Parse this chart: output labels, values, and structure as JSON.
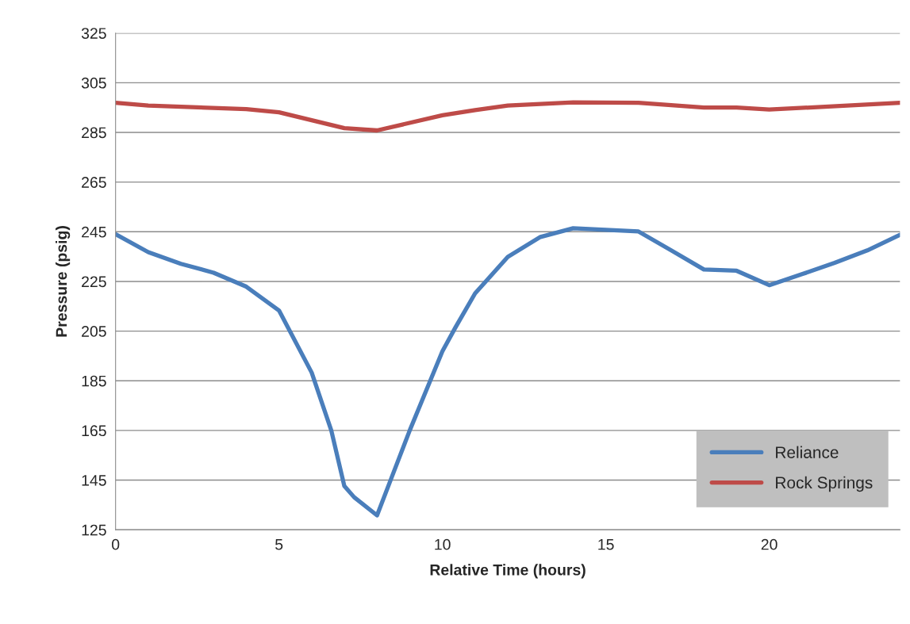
{
  "chart_data": {
    "type": "line",
    "xlabel": "Relative Time (hours)",
    "ylabel": "Pressure (psig)",
    "xlim": [
      0,
      24
    ],
    "xticks": [
      0,
      5,
      10,
      15,
      20
    ],
    "ylim": [
      125,
      325
    ],
    "yticks": [
      125,
      145,
      165,
      185,
      205,
      225,
      245,
      265,
      285,
      305,
      325
    ],
    "grid": "y",
    "legend": "bottom right",
    "marker": "none",
    "line_style": "solid",
    "series": [
      {
        "name": "Reliance",
        "color": "#4a7ebb",
        "x": [
          0,
          1,
          2,
          3,
          4,
          5,
          6,
          6.6,
          7,
          7.3,
          8,
          8.4,
          9,
          10,
          10.4,
          11,
          12,
          13,
          14,
          15,
          16,
          17,
          18,
          19,
          20,
          21,
          22,
          23,
          24
        ],
        "values": [
          244,
          236.8,
          232.1,
          228.5,
          222.9,
          213.3,
          188.3,
          165,
          142.6,
          138.1,
          130.8,
          144.5,
          165,
          196.9,
          206.5,
          220.2,
          234.9,
          242.9,
          246.4,
          245.8,
          245.1,
          237.5,
          229.8,
          229.3,
          223.5,
          227.9,
          232.5,
          237.5,
          243.8
        ]
      },
      {
        "name": "Rock Springs",
        "color": "#be4b48",
        "x": [
          0,
          1,
          4,
          5,
          7,
          8,
          10,
          11,
          12,
          14,
          16,
          18,
          19,
          20,
          24
        ],
        "values": [
          296.9,
          295.8,
          294.4,
          293.1,
          286.7,
          285.8,
          291.9,
          294,
          295.8,
          297.1,
          296.9,
          295,
          295,
          294.2,
          296.9
        ]
      }
    ]
  }
}
